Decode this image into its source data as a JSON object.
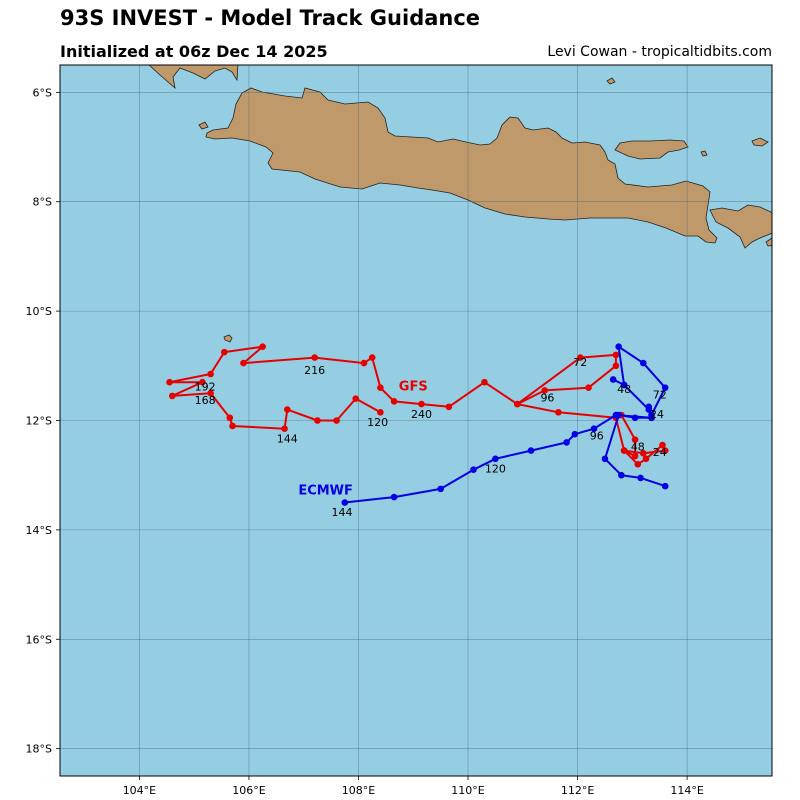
{
  "header": {
    "title": "93S INVEST - Model Track Guidance",
    "subtitle": "Initialized at 06z Dec 14 2025",
    "credit": "Levi Cowan - tropicaltidbits.com"
  },
  "map": {
    "ocean_color": "#95CEE3",
    "land_color": "#C0996B",
    "grid_color": "#4D6F80",
    "lon_range": [
      102.55,
      115.55
    ],
    "lat_range": [
      -18.5,
      -5.5
    ],
    "lon_ticks": [
      {
        "value": 104,
        "label": "104°E"
      },
      {
        "value": 106,
        "label": "106°E"
      },
      {
        "value": 108,
        "label": "108°E"
      },
      {
        "value": 110,
        "label": "110°E"
      },
      {
        "value": 112,
        "label": "112°E"
      },
      {
        "value": 114,
        "label": "114°E"
      }
    ],
    "lat_ticks": [
      {
        "value": -6,
        "label": "6°S"
      },
      {
        "value": -8,
        "label": "8°S"
      },
      {
        "value": -10,
        "label": "10°S"
      },
      {
        "value": -12,
        "label": "12°S"
      },
      {
        "value": -14,
        "label": "14°S"
      },
      {
        "value": -16,
        "label": "16°S"
      },
      {
        "value": -18,
        "label": "18°S"
      }
    ]
  },
  "chart_data": {
    "type": "line",
    "xlabel": "",
    "ylabel": "",
    "xlim": [
      102.55,
      115.55
    ],
    "ylim": [
      -18.5,
      -5.5
    ],
    "grid": true,
    "series": [
      {
        "name": "GFS",
        "color": "#E60000",
        "label_at": [
          109.0,
          -11.45
        ],
        "points": [
          [
            112.8,
            -11.9
          ],
          [
            113.05,
            -12.35
          ],
          [
            113.05,
            -12.65
          ],
          [
            112.85,
            -12.55
          ],
          [
            113.1,
            -12.8
          ],
          [
            113.25,
            -12.7
          ],
          [
            113.55,
            -12.45
          ],
          [
            113.6,
            -12.55
          ],
          [
            113.2,
            -12.6
          ],
          [
            112.85,
            -12.55
          ],
          [
            112.7,
            -11.95
          ],
          [
            111.65,
            -11.85
          ],
          [
            110.9,
            -11.7
          ],
          [
            111.4,
            -11.45
          ],
          [
            112.2,
            -11.4
          ],
          [
            112.7,
            -11.0
          ],
          [
            112.7,
            -10.8
          ],
          [
            112.05,
            -10.85
          ],
          [
            110.9,
            -11.7
          ],
          [
            110.3,
            -11.3
          ],
          [
            109.65,
            -11.75
          ],
          [
            109.15,
            -11.7
          ],
          [
            108.65,
            -11.65
          ],
          [
            108.4,
            -11.4
          ],
          [
            108.25,
            -10.85
          ],
          [
            108.1,
            -10.95
          ],
          [
            107.2,
            -10.85
          ],
          [
            105.9,
            -10.95
          ],
          [
            106.25,
            -10.65
          ],
          [
            105.55,
            -10.75
          ],
          [
            105.3,
            -11.15
          ],
          [
            104.55,
            -11.3
          ],
          [
            105.15,
            -11.3
          ],
          [
            104.6,
            -11.55
          ],
          [
            105.3,
            -11.5
          ],
          [
            105.65,
            -11.95
          ],
          [
            105.7,
            -12.1
          ],
          [
            106.65,
            -12.15
          ],
          [
            106.7,
            -11.8
          ],
          [
            107.25,
            -12.0
          ],
          [
            107.6,
            -12.0
          ],
          [
            107.95,
            -11.6
          ],
          [
            108.4,
            -11.85
          ]
        ],
        "labels": [
          {
            "text": "24",
            "at": [
              113.5,
              -12.65
            ]
          },
          {
            "text": "48",
            "at": [
              113.1,
              -12.55
            ]
          },
          {
            "text": "72",
            "at": [
              112.05,
              -11.0
            ]
          },
          {
            "text": "96",
            "at": [
              111.45,
              -11.65
            ]
          },
          {
            "text": "120",
            "at": [
              108.35,
              -12.1
            ]
          },
          {
            "text": "144",
            "at": [
              106.7,
              -12.4
            ]
          },
          {
            "text": "168",
            "at": [
              105.2,
              -11.7
            ]
          },
          {
            "text": "192",
            "at": [
              105.2,
              -11.45
            ]
          },
          {
            "text": "216",
            "at": [
              107.2,
              -11.15
            ]
          },
          {
            "text": "240",
            "at": [
              109.15,
              -11.95
            ]
          }
        ]
      },
      {
        "name": "ECMWF",
        "color": "#0000E6",
        "label_at": [
          107.4,
          -13.35
        ],
        "points": [
          [
            113.6,
            -13.2
          ],
          [
            113.15,
            -13.05
          ],
          [
            112.8,
            -13.0
          ],
          [
            112.5,
            -12.7
          ],
          [
            112.75,
            -11.9
          ],
          [
            113.05,
            -11.95
          ],
          [
            113.35,
            -11.95
          ],
          [
            113.3,
            -11.75
          ],
          [
            113.35,
            -11.9
          ],
          [
            113.6,
            -11.4
          ],
          [
            113.2,
            -10.95
          ],
          [
            112.75,
            -10.65
          ],
          [
            112.85,
            -11.35
          ],
          [
            112.65,
            -11.25
          ],
          [
            112.85,
            -11.35
          ],
          [
            113.3,
            -11.8
          ],
          [
            113.35,
            -11.95
          ],
          [
            112.7,
            -11.9
          ],
          [
            112.3,
            -12.15
          ],
          [
            111.95,
            -12.25
          ],
          [
            111.8,
            -12.4
          ],
          [
            111.15,
            -12.55
          ],
          [
            110.5,
            -12.7
          ],
          [
            110.1,
            -12.9
          ],
          [
            109.5,
            -13.25
          ],
          [
            108.65,
            -13.4
          ],
          [
            107.75,
            -13.5
          ]
        ],
        "labels": [
          {
            "text": "24",
            "at": [
              113.45,
              -11.95
            ]
          },
          {
            "text": "48",
            "at": [
              112.85,
              -11.5
            ]
          },
          {
            "text": "72",
            "at": [
              113.5,
              -11.6
            ]
          },
          {
            "text": "96",
            "at": [
              112.35,
              -12.35
            ]
          },
          {
            "text": "120",
            "at": [
              110.5,
              -12.95
            ]
          },
          {
            "text": "144",
            "at": [
              107.7,
              -13.75
            ]
          }
        ]
      }
    ]
  }
}
